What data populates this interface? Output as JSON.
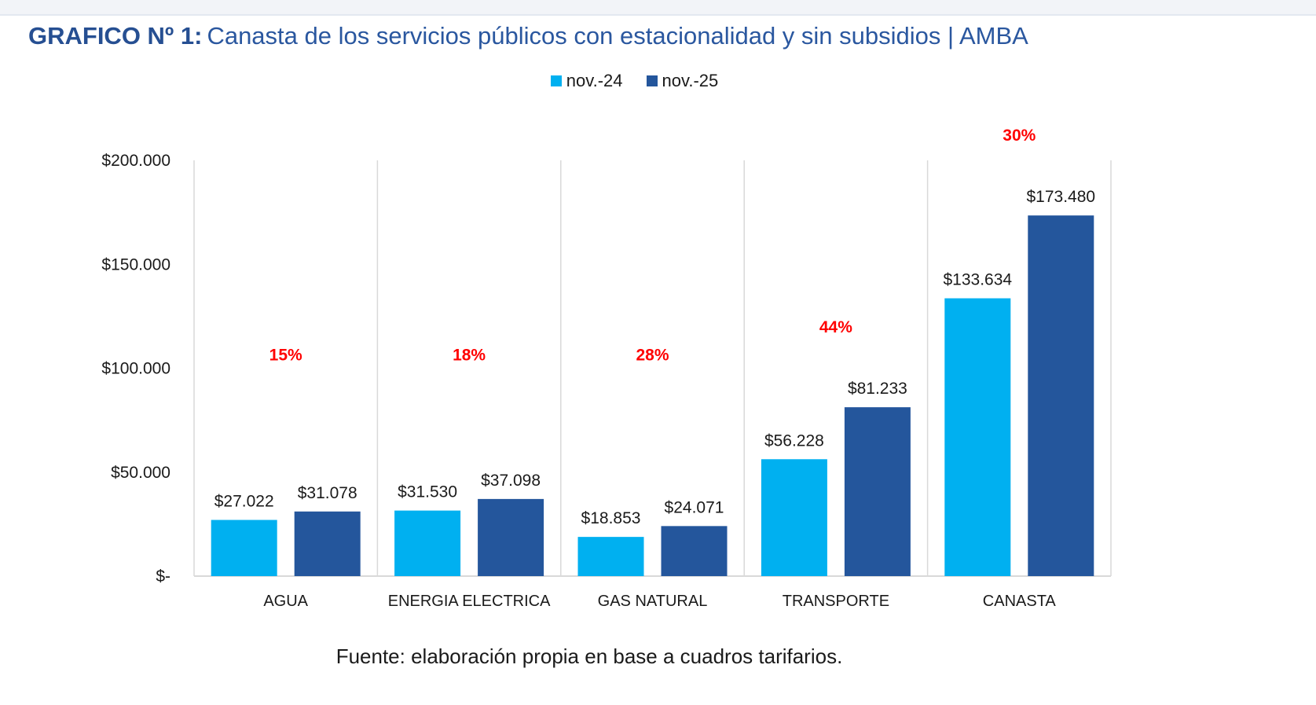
{
  "title": {
    "prefix": "GRAFICO Nº 1:",
    "text": "Canasta de los servicios públicos con estacionalidad y sin subsidios | AMBA"
  },
  "source": "Fuente: elaboración propia en base a cuadros tarifarios.",
  "colors": {
    "series1": "#00b0f0",
    "series2": "#24569c",
    "pct": "#ff0000",
    "grid": "#d9d9d9",
    "text": "#1a1a1a"
  },
  "chart_data": {
    "type": "bar",
    "title": "Canasta de los servicios públicos con estacionalidad y sin subsidios | AMBA",
    "categories": [
      "AGUA",
      "ENERGIA ELECTRICA",
      "GAS NATURAL",
      "TRANSPORTE",
      "CANASTA"
    ],
    "series": [
      {
        "name": "nov.-24",
        "values": [
          27022,
          31530,
          18853,
          56228,
          133634
        ],
        "labels": [
          "$27.022",
          "$31.530",
          "$18.853",
          "$56.228",
          "$133.634"
        ]
      },
      {
        "name": "nov.-25",
        "values": [
          31078,
          37098,
          24071,
          81233,
          173480
        ],
        "labels": [
          "$31.078",
          "$37.098",
          "$24.071",
          "$81.233",
          "$173.480"
        ]
      }
    ],
    "percent_change": [
      "15%",
      "18%",
      "28%",
      "44%",
      "30%"
    ],
    "yticks": [
      0,
      50000,
      100000,
      150000,
      200000
    ],
    "ytick_labels": [
      "$-",
      "$50.000",
      "$100.000",
      "$150.000",
      "$200.000"
    ],
    "ylim": [
      0,
      200000
    ],
    "legend": "top-center",
    "xlabel": "",
    "ylabel": ""
  }
}
